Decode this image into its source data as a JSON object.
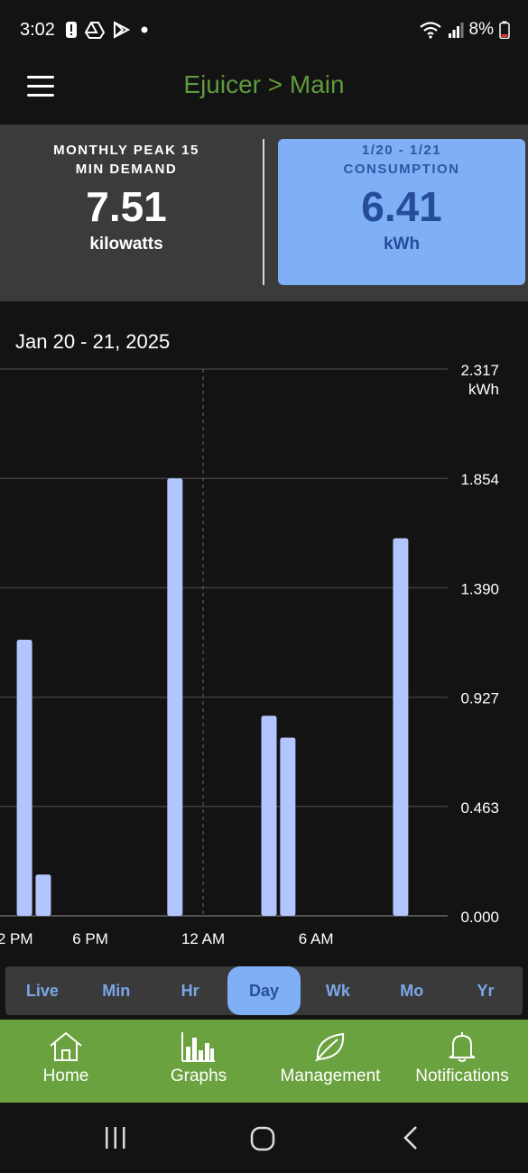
{
  "status_bar": {
    "time": "3:02",
    "battery": "8%",
    "icons_left": [
      "alert-icon",
      "drive-icon",
      "play-store-icon",
      "dot-icon"
    ],
    "icons_right": [
      "wifi-icon",
      "signal-icon",
      "battery-icon"
    ]
  },
  "appbar": {
    "title": "Ejuicer > Main",
    "menu_icon": "hamburger-menu-icon"
  },
  "summary": {
    "left": {
      "label_line1": "MONTHLY PEAK 15",
      "label_line2": "MIN DEMAND",
      "value": "7.51",
      "unit": "kilowatts"
    },
    "right": {
      "label_line1": "1/20 - 1/21",
      "label_line2": "CONSUMPTION",
      "value": "6.41",
      "unit": "kWh"
    }
  },
  "date_label": "Jan 20 - 21, 2025",
  "chart_data": {
    "type": "bar",
    "unit_label": "kWh",
    "y_ticks": [
      "2.317",
      "1.854",
      "1.390",
      "0.927",
      "0.463",
      "0.000"
    ],
    "ylim": [
      0,
      2.317
    ],
    "x_labels": [
      {
        "text": "2 PM",
        "hour": 14
      },
      {
        "text": "6 PM",
        "hour": 18
      },
      {
        "text": "12 AM",
        "hour": 24
      },
      {
        "text": "6 AM",
        "hour": 30
      }
    ],
    "x_range": [
      13.2,
      37
    ],
    "marker_hour": 24,
    "bars": [
      {
        "hour": 14.5,
        "value": 1.17
      },
      {
        "hour": 15.5,
        "value": 0.175
      },
      {
        "hour": 22.5,
        "value": 1.854
      },
      {
        "hour": 27.5,
        "value": 0.848
      },
      {
        "hour": 28.5,
        "value": 0.755
      },
      {
        "hour": 34.5,
        "value": 1.6
      }
    ],
    "grid": true,
    "bar_color": "#b3c5ff"
  },
  "ranges": {
    "items": [
      "Live",
      "Min",
      "Hr",
      "Day",
      "Wk",
      "Mo",
      "Yr"
    ],
    "active": "Day"
  },
  "bottom_nav": {
    "items": [
      {
        "label": "Home",
        "icon": "home-icon"
      },
      {
        "label": "Graphs",
        "icon": "bar-chart-icon"
      },
      {
        "label": "Management",
        "icon": "leaf-icon"
      },
      {
        "label": "Notifications",
        "icon": "bell-icon"
      }
    ]
  },
  "system_nav": [
    "recents-icon",
    "home-circle-icon",
    "back-icon"
  ]
}
